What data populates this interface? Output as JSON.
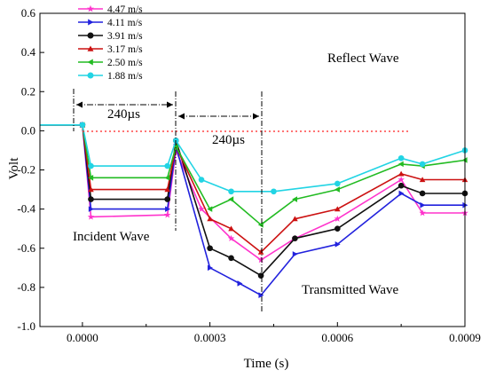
{
  "chart_data": {
    "type": "line",
    "xlabel": "Time (s)",
    "ylabel": "Volt",
    "xlim": [
      -0.0001,
      0.0009
    ],
    "ylim": [
      -1.0,
      0.6
    ],
    "xticks": [
      0.0,
      0.0003,
      0.0006,
      0.0009
    ],
    "xtick_labels": [
      "0.0000",
      "0.0003",
      "0.0006",
      "0.0009"
    ],
    "yticks": [
      -1.0,
      -0.8,
      -0.6,
      -0.4,
      -0.2,
      0.0,
      0.2,
      0.4,
      0.6
    ],
    "ytick_labels": [
      "-1.0",
      "-0.8",
      "-0.6",
      "-0.4",
      "-0.2",
      "0.0",
      "0.2",
      "0.4",
      "0.6"
    ],
    "grid": false,
    "legend": "top-left",
    "series": [
      {
        "name": "4.47 m/s",
        "color": "#ff33cc",
        "marker": "star",
        "points": [
          [
            -0.0001,
            0.03
          ],
          [
            0.0,
            0.03
          ],
          [
            2e-05,
            -0.44
          ],
          [
            0.0002,
            -0.43
          ],
          [
            0.00022,
            -0.1
          ],
          [
            0.00028,
            -0.4
          ],
          [
            0.00035,
            -0.55
          ],
          [
            0.00042,
            -0.66
          ],
          [
            0.0005,
            -0.55
          ],
          [
            0.0006,
            -0.45
          ],
          [
            0.00075,
            -0.25
          ],
          [
            0.0008,
            -0.42
          ],
          [
            0.0009,
            -0.42
          ]
        ]
      },
      {
        "name": "4.11 m/s",
        "color": "#2222dd",
        "marker": "triangle-right",
        "points": [
          [
            -0.0001,
            0.03
          ],
          [
            0.0,
            0.03
          ],
          [
            2e-05,
            -0.4
          ],
          [
            0.0002,
            -0.4
          ],
          [
            0.00022,
            -0.08
          ],
          [
            0.0003,
            -0.7
          ],
          [
            0.00037,
            -0.78
          ],
          [
            0.00042,
            -0.84
          ],
          [
            0.0005,
            -0.63
          ],
          [
            0.0006,
            -0.58
          ],
          [
            0.00075,
            -0.32
          ],
          [
            0.0008,
            -0.38
          ],
          [
            0.0009,
            -0.38
          ]
        ]
      },
      {
        "name": "3.91 m/s",
        "color": "#111111",
        "marker": "circle",
        "points": [
          [
            -0.0001,
            0.03
          ],
          [
            0.0,
            0.03
          ],
          [
            2e-05,
            -0.35
          ],
          [
            0.0002,
            -0.35
          ],
          [
            0.00022,
            -0.05
          ],
          [
            0.0003,
            -0.6
          ],
          [
            0.00035,
            -0.65
          ],
          [
            0.00042,
            -0.74
          ],
          [
            0.0005,
            -0.55
          ],
          [
            0.0006,
            -0.5
          ],
          [
            0.00075,
            -0.28
          ],
          [
            0.0008,
            -0.32
          ],
          [
            0.0009,
            -0.32
          ]
        ]
      },
      {
        "name": "3.17 m/s",
        "color": "#cc1111",
        "marker": "triangle-up",
        "points": [
          [
            -0.0001,
            0.03
          ],
          [
            0.0,
            0.03
          ],
          [
            2e-05,
            -0.3
          ],
          [
            0.0002,
            -0.3
          ],
          [
            0.00022,
            -0.08
          ],
          [
            0.0003,
            -0.45
          ],
          [
            0.00035,
            -0.5
          ],
          [
            0.00042,
            -0.62
          ],
          [
            0.0005,
            -0.45
          ],
          [
            0.0006,
            -0.4
          ],
          [
            0.00075,
            -0.22
          ],
          [
            0.0008,
            -0.25
          ],
          [
            0.0009,
            -0.25
          ]
        ]
      },
      {
        "name": "2.50 m/s",
        "color": "#22bb22",
        "marker": "triangle-left",
        "points": [
          [
            -0.0001,
            0.03
          ],
          [
            0.0,
            0.03
          ],
          [
            2e-05,
            -0.24
          ],
          [
            0.0002,
            -0.24
          ],
          [
            0.00022,
            -0.08
          ],
          [
            0.0003,
            -0.4
          ],
          [
            0.00035,
            -0.35
          ],
          [
            0.00042,
            -0.48
          ],
          [
            0.0005,
            -0.35
          ],
          [
            0.0006,
            -0.3
          ],
          [
            0.00075,
            -0.17
          ],
          [
            0.0008,
            -0.18
          ],
          [
            0.0009,
            -0.15
          ]
        ]
      },
      {
        "name": "1.88 m/s",
        "color": "#22d4e4",
        "marker": "circle",
        "points": [
          [
            -0.0001,
            0.03
          ],
          [
            0.0,
            0.03
          ],
          [
            2e-05,
            -0.18
          ],
          [
            0.0002,
            -0.18
          ],
          [
            0.00022,
            -0.05
          ],
          [
            0.00028,
            -0.25
          ],
          [
            0.00035,
            -0.31
          ],
          [
            0.00045,
            -0.31
          ],
          [
            0.0006,
            -0.27
          ],
          [
            0.00075,
            -0.14
          ],
          [
            0.0008,
            -0.17
          ],
          [
            0.0009,
            -0.1
          ]
        ]
      }
    ],
    "annotations": [
      "240µs",
      "240µs",
      "Reflect Wave",
      "Incident Wave",
      "Transmitted Wave"
    ]
  }
}
